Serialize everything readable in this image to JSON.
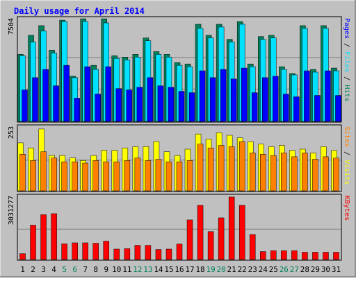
{
  "chart_data": [
    {
      "type": "bar",
      "title": "Daily usage for April 2014",
      "categories": [
        "1",
        "2",
        "3",
        "4",
        "5",
        "6",
        "7",
        "8",
        "9",
        "10",
        "11",
        "12",
        "13",
        "14",
        "15",
        "16",
        "17",
        "18",
        "19",
        "20",
        "21",
        "22",
        "23",
        "24",
        "25",
        "26",
        "27",
        "28",
        "29",
        "30",
        "31"
      ],
      "weekend_days": [
        "5",
        "6",
        "12",
        "13",
        "19",
        "20",
        "26",
        "27"
      ],
      "y_max_label": "7504",
      "ylim": [
        0,
        7504
      ],
      "right_label": {
        "parts": [
          "Pages",
          " / ",
          "Files",
          " / ",
          "Hits"
        ]
      },
      "series": [
        {
          "name": "Hits",
          "color": "#00805c",
          "values": [
            4900,
            6300,
            7000,
            5200,
            7400,
            3300,
            7500,
            4100,
            7500,
            4800,
            4700,
            4900,
            6100,
            5100,
            4900,
            4300,
            4200,
            7100,
            6300,
            7100,
            6000,
            7300,
            4200,
            6200,
            6300,
            4000,
            3500,
            7000,
            3800,
            7000,
            3900
          ]
        },
        {
          "name": "Files",
          "color": "#00e0ff",
          "values": [
            4800,
            5800,
            6600,
            5000,
            7300,
            3200,
            7300,
            3800,
            7200,
            4600,
            4500,
            4700,
            5900,
            4900,
            4700,
            4100,
            4000,
            6800,
            6100,
            6900,
            5800,
            7100,
            4000,
            6000,
            6100,
            3800,
            3400,
            6800,
            3600,
            6800,
            3700
          ]
        },
        {
          "name": "Pages",
          "color": "#0000ff",
          "values": [
            2300,
            3200,
            3800,
            2600,
            4100,
            1700,
            4000,
            2000,
            4000,
            2400,
            2300,
            2500,
            3200,
            2600,
            2500,
            2200,
            2100,
            3700,
            3200,
            3800,
            3100,
            3900,
            2100,
            3200,
            3300,
            2000,
            1800,
            3700,
            1900,
            3700,
            1900
          ]
        }
      ]
    },
    {
      "type": "bar",
      "y_max_label": "253",
      "ylim": [
        0,
        253
      ],
      "right_label": {
        "parts": [
          "Sites",
          " / ",
          "Visits"
        ]
      },
      "series": [
        {
          "name": "Visits",
          "color": "#ffff00",
          "values": [
            190,
            170,
            245,
            140,
            140,
            130,
            120,
            140,
            160,
            160,
            170,
            175,
            175,
            195,
            155,
            140,
            165,
            225,
            205,
            230,
            220,
            210,
            195,
            185,
            175,
            180,
            160,
            165,
            150,
            175,
            160
          ]
        },
        {
          "name": "Sites",
          "color": "#ff8000",
          "values": [
            145,
            120,
            155,
            130,
            115,
            115,
            110,
            120,
            115,
            115,
            120,
            130,
            120,
            125,
            115,
            115,
            120,
            185,
            170,
            180,
            175,
            195,
            150,
            145,
            140,
            150,
            135,
            150,
            125,
            135,
            130
          ]
        }
      ]
    },
    {
      "type": "bar",
      "y_max_label": "3031277",
      "ylim": [
        0,
        3031277
      ],
      "right_label": {
        "parts": [
          "KBytes"
        ]
      },
      "series": [
        {
          "name": "KBytes",
          "color": "#ff0000",
          "values": [
            280000,
            1650000,
            2150000,
            2200000,
            750000,
            800000,
            800000,
            780000,
            880000,
            500000,
            520000,
            680000,
            680000,
            480000,
            500000,
            740000,
            1900000,
            2600000,
            1340000,
            2000000,
            3000000,
            2600000,
            1200000,
            380000,
            420000,
            420000,
            420000,
            350000,
            350000,
            350000,
            350000
          ]
        }
      ]
    }
  ],
  "colors": {
    "page_bg": "#c0c0c0",
    "plot_bg": "#c0c0c0",
    "title": "#0000ff",
    "weekday_label": "#000000",
    "weekend_label": "#00805c",
    "grid": "#808080"
  }
}
